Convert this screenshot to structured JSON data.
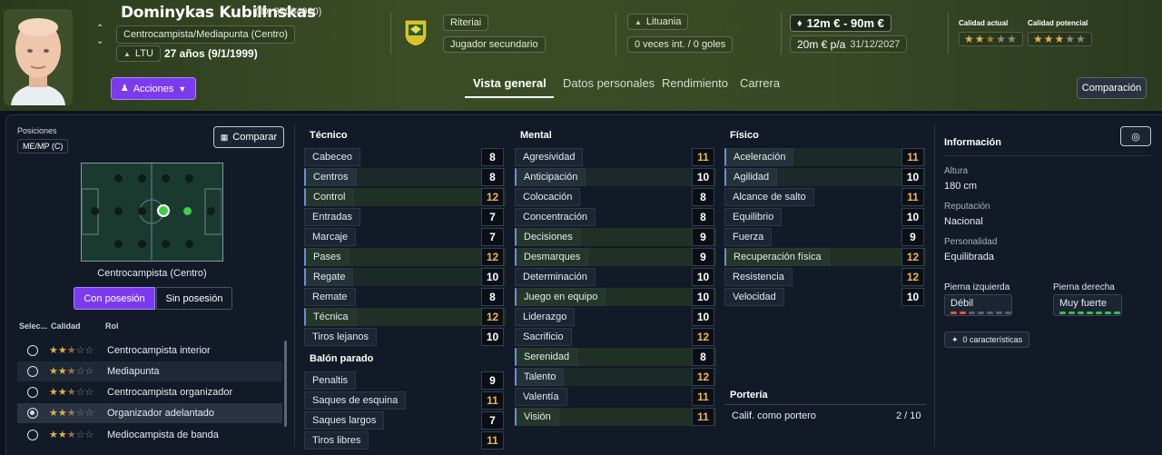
{
  "player": {
    "name": "Dominykas Kubilinskas",
    "id_text": "(ID: 37064900)",
    "position_long": "Centrocampista/Mediapunta (Centro)",
    "nation_code": "LTU",
    "age_text": "27 años (9/1/1999)"
  },
  "actions_label": "Acciones",
  "club": {
    "name": "Riteriai",
    "role": "Jugador secundario"
  },
  "national": {
    "country": "Lituania",
    "caps": "0 veces int. / 0 goles"
  },
  "contract": {
    "value": "12m € - 90m €",
    "wage": "20m € p/a",
    "expires": "31/12/2027"
  },
  "quality": {
    "current_label": "Calidad actual",
    "current_stars": 2.5,
    "potential_label": "Calidad potencial",
    "potential_stars": 3
  },
  "tabs": [
    "Vista general",
    "Datos personales",
    "Rendimiento",
    "Carrera"
  ],
  "comparison_button": "Comparación",
  "positions": {
    "title": "Posiciones",
    "current": "ME/MP (C)",
    "compare_label": "Comparar",
    "pitch_caption": "Centrocampista (Centro)",
    "toggle_with": "Con posesión",
    "toggle_without": "Sin posesión",
    "cols": [
      "Selec...",
      "Calidad",
      "Rol"
    ],
    "roles": [
      {
        "name": "Centrocampista interior",
        "stars": 2.5,
        "selected": false
      },
      {
        "name": "Mediapunta",
        "stars": 2.5,
        "selected": false
      },
      {
        "name": "Centrocampista organizador",
        "stars": 2.5,
        "selected": false
      },
      {
        "name": "Organizador adelantado",
        "stars": 2.5,
        "selected": true
      },
      {
        "name": "Mediocampista de banda",
        "stars": 2.5,
        "selected": false
      }
    ]
  },
  "tecnico": {
    "title": "Técnico",
    "attrs": [
      {
        "name": "Cabeceo",
        "value": "8"
      },
      {
        "name": "Centros",
        "value": "8"
      },
      {
        "name": "Control",
        "value": "12"
      },
      {
        "name": "Entradas",
        "value": "7"
      },
      {
        "name": "Marcaje",
        "value": "7"
      },
      {
        "name": "Pases",
        "value": "12"
      },
      {
        "name": "Regate",
        "value": "10"
      },
      {
        "name": "Remate",
        "value": "8"
      },
      {
        "name": "Técnica",
        "value": "12"
      },
      {
        "name": "Tiros lejanos",
        "value": "10"
      }
    ]
  },
  "balon_parado": {
    "title": "Balón parado",
    "attrs": [
      {
        "name": "Penaltis",
        "value": "9"
      },
      {
        "name": "Saques de esquina",
        "value": "11"
      },
      {
        "name": "Saques largos",
        "value": "7"
      },
      {
        "name": "Tiros libres",
        "value": "11"
      }
    ]
  },
  "mental": {
    "title": "Mental",
    "attrs": [
      {
        "name": "Agresividad",
        "value": "11"
      },
      {
        "name": "Anticipación",
        "value": "10"
      },
      {
        "name": "Colocación",
        "value": "8"
      },
      {
        "name": "Concentración",
        "value": "8"
      },
      {
        "name": "Decisiones",
        "value": "9"
      },
      {
        "name": "Desmarques",
        "value": "9"
      },
      {
        "name": "Determinación",
        "value": "10"
      },
      {
        "name": "Juego en equipo",
        "value": "10"
      },
      {
        "name": "Liderazgo",
        "value": "10"
      },
      {
        "name": "Sacrificio",
        "value": "12"
      },
      {
        "name": "Serenidad",
        "value": "8"
      },
      {
        "name": "Talento",
        "value": "12"
      },
      {
        "name": "Valentía",
        "value": "11"
      },
      {
        "name": "Visión",
        "value": "11"
      }
    ]
  },
  "fisico": {
    "title": "Físico",
    "attrs": [
      {
        "name": "Aceleración",
        "value": "11"
      },
      {
        "name": "Agilidad",
        "value": "10"
      },
      {
        "name": "Alcance de salto",
        "value": "11"
      },
      {
        "name": "Equilibrio",
        "value": "10"
      },
      {
        "name": "Fuerza",
        "value": "9"
      },
      {
        "name": "Recuperación física",
        "value": "12"
      },
      {
        "name": "Resistencia",
        "value": "12"
      },
      {
        "name": "Velocidad",
        "value": "10"
      }
    ]
  },
  "porteria": {
    "title": "Portería",
    "label": "Calif. como portero",
    "value": "2 / 10"
  },
  "info": {
    "title": "Información",
    "height_label": "Altura",
    "height": "180 cm",
    "reputation_label": "Reputación",
    "reputation": "Nacional",
    "personality_label": "Personalidad",
    "personality": "Equilibrada",
    "left_foot_label": "Pierna izquierda",
    "left_foot": "Débil",
    "right_foot_label": "Pierna derecha",
    "right_foot": "Muy fuerte",
    "traits": "0 características"
  },
  "colors": {
    "accent": "#7c3aed",
    "high_value": "#f3b44a",
    "star": "#e3b14a"
  }
}
